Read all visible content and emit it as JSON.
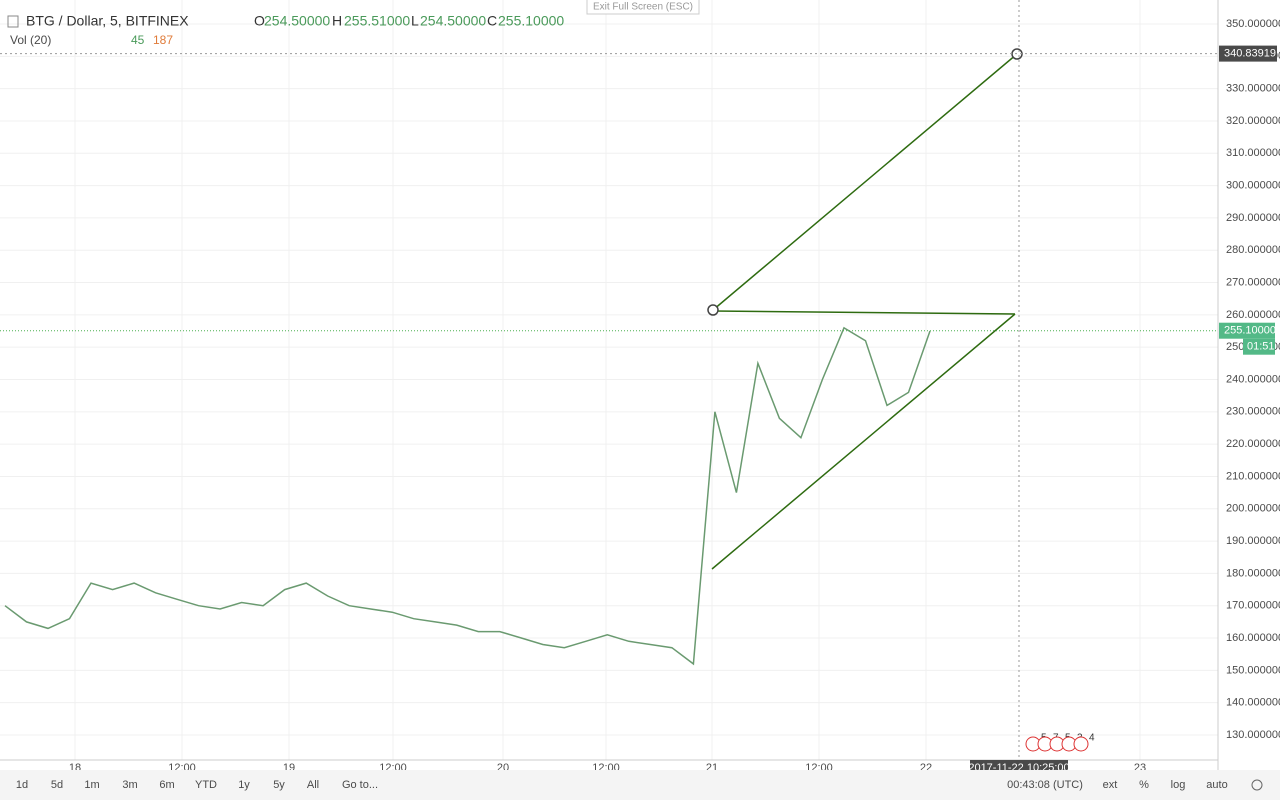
{
  "header": {
    "symbol": "BTG / Dollar, 5, BITFINEX",
    "open_label": "O",
    "open": "254.50000",
    "high_label": "H",
    "high": "255.51000",
    "low_label": "L",
    "low": "254.50000",
    "close_label": "C",
    "close": "255.10000",
    "volume_study": "Vol (20)",
    "volume_a": "45",
    "volume_b": "187"
  },
  "exit_fullscreen": "Exit Full Screen (ESC)",
  "chart": {
    "type": "line",
    "color": "#6a9a70",
    "close": [
      170,
      165,
      163,
      166,
      177,
      175,
      177,
      174,
      172,
      170,
      169,
      171,
      170,
      175,
      177,
      173,
      170,
      169,
      168,
      166,
      165,
      164,
      162,
      162,
      160,
      158,
      157,
      159,
      161,
      159,
      158,
      157,
      152,
      230,
      205,
      245,
      228,
      222,
      240,
      256,
      252,
      232,
      236,
      255
    ],
    "ylim": [
      130,
      350
    ],
    "yticks": [
      {
        "value": 130,
        "label": "130.000000"
      },
      {
        "value": 140,
        "label": "140.000000"
      },
      {
        "value": 150,
        "label": "150.000000"
      },
      {
        "value": 160,
        "label": "160.000000"
      },
      {
        "value": 170,
        "label": "170.000000"
      },
      {
        "value": 180,
        "label": "180.000000"
      },
      {
        "value": 190,
        "label": "190.000000"
      },
      {
        "value": 200,
        "label": "200.000000"
      },
      {
        "value": 210,
        "label": "210.000000"
      },
      {
        "value": 220,
        "label": "220.000000"
      },
      {
        "value": 230,
        "label": "230.000000"
      },
      {
        "value": 240,
        "label": "240.000000"
      },
      {
        "value": 250,
        "label": "250.000000"
      },
      {
        "value": 260,
        "label": "260.000000"
      },
      {
        "value": 270,
        "label": "270.000000"
      },
      {
        "value": 280,
        "label": "280.000000"
      },
      {
        "value": 290,
        "label": "290.000000"
      },
      {
        "value": 300,
        "label": "300.000000"
      },
      {
        "value": 310,
        "label": "310.000000"
      },
      {
        "value": 320,
        "label": "320.000000"
      },
      {
        "value": 330,
        "label": "330.000000"
      },
      {
        "value": 340,
        "label": "340.000000"
      },
      {
        "value": 350,
        "label": "350.000000"
      }
    ],
    "x_labels": [
      "18",
      "12:00",
      "19",
      "12:00",
      "20",
      "12:00",
      "21",
      "12:00",
      "22",
      "23"
    ],
    "last_price": {
      "value": 255.1,
      "label": "255.10000"
    },
    "countdown": "01:51",
    "crosshair_price": {
      "value": 340.83919,
      "label": "340.83919"
    },
    "crosshair_time": "2017-11-22 10:25:00",
    "events": [
      "5",
      "7",
      "5",
      "3",
      "4"
    ]
  },
  "toolbar": {
    "ranges": [
      "1d",
      "5d",
      "1m",
      "3m",
      "6m",
      "YTD",
      "1y",
      "5y",
      "All",
      "Go to..."
    ],
    "clock": "00:43:08 (UTC)",
    "options": [
      "ext",
      "%",
      "log",
      "auto"
    ]
  }
}
